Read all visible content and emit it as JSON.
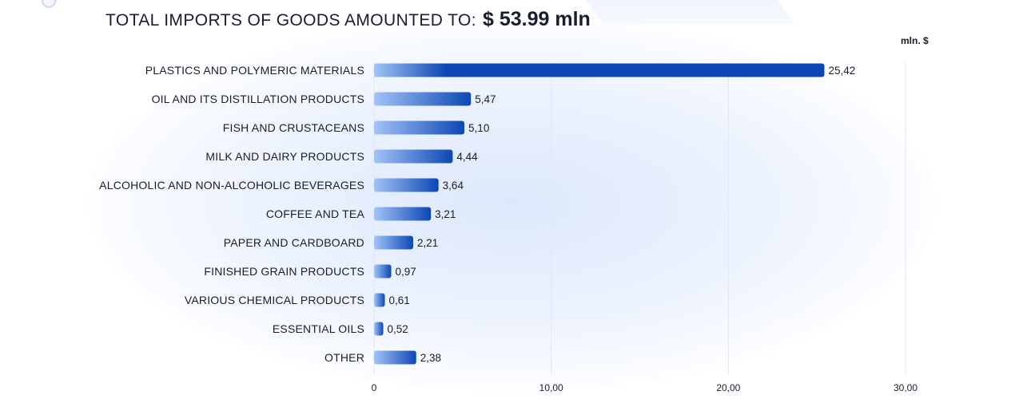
{
  "headline": {
    "lead": "TOTAL IMPORTS OF GOODS AMOUNTED TO:",
    "total": "$ 53.99  mln"
  },
  "chart_data": {
    "type": "bar",
    "orientation": "horizontal",
    "unit_label": "mln. $",
    "categories": [
      "PLASTICS AND POLYMERIC MATERIALS",
      "OIL AND ITS DISTILLATION PRODUCTS",
      "FISH AND CRUSTACEANS",
      "MILK AND DAIRY PRODUCTS",
      "ALCOHOLIC AND NON-ALCOHOLIC BEVERAGES",
      "COFFEE AND TEA",
      "PAPER AND CARDBOARD",
      "FINISHED GRAIN PRODUCTS",
      "VARIOUS CHEMICAL PRODUCTS",
      "ESSENTIAL OILS",
      "OTHER"
    ],
    "values": [
      25.42,
      5.47,
      5.1,
      4.44,
      3.64,
      3.21,
      2.21,
      0.97,
      0.61,
      0.52,
      2.38
    ],
    "value_labels": [
      "25,42",
      "5,47",
      "5,10",
      "4,44",
      "3,64",
      "3,21",
      "2,21",
      "0,97",
      "0,61",
      "0,52",
      "2,38"
    ],
    "xlim": [
      0,
      30
    ],
    "ticks": [
      0,
      10,
      20,
      30
    ],
    "tick_labels": [
      "0",
      "10,00",
      "20,00",
      "30,00"
    ],
    "grid": true,
    "colors": {
      "bar_start": "#a3c3f7",
      "bar_end": "#0d47b4",
      "grid": "#e2e6ee",
      "text": "#1a1d2b"
    }
  }
}
